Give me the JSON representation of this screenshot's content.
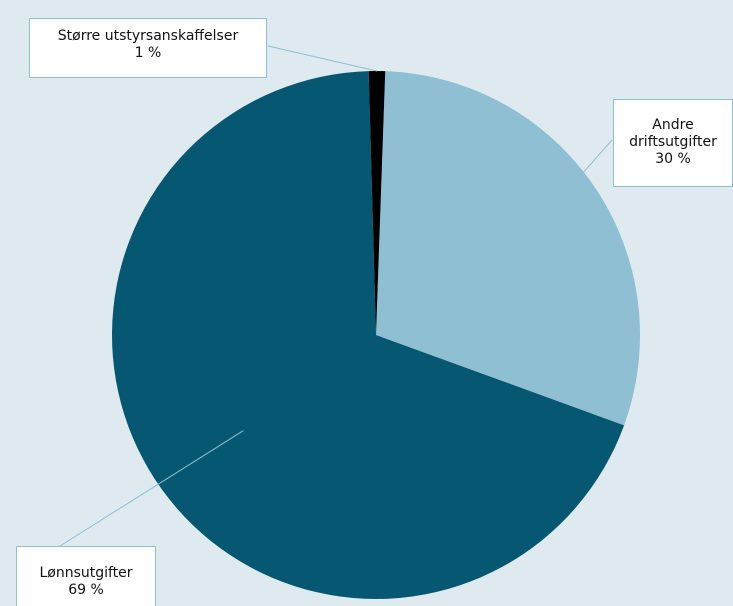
{
  "chart_data": {
    "type": "pie",
    "slices": [
      {
        "name": "Andre driftsutgifter",
        "name_lines": [
          "Andre",
          "driftsutgifter"
        ],
        "pct_label": "30 %",
        "value": 30,
        "color": "#8fbfd3"
      },
      {
        "name": "Lønnsutgifter",
        "name_lines": [
          "Lønnsutgifter"
        ],
        "pct_label": "69 %",
        "value": 69,
        "color": "#065872"
      },
      {
        "name": "Større utstyrsanskaffelser",
        "name_lines": [
          "Større utstyrsanskaffelser"
        ],
        "pct_label": "1 %",
        "value": 1,
        "color": "#000000"
      }
    ],
    "label_placement": "callout boxes with leader lines"
  }
}
